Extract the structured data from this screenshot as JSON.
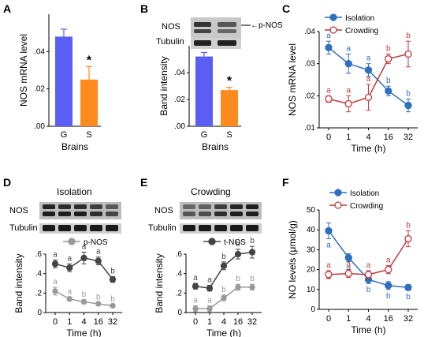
{
  "colors": {
    "blue": "#2f6fbf",
    "red": "#c0393b",
    "bar_blue": "#5b5ef5",
    "bar_orange": "#ff8a1e",
    "dark": "#444444",
    "gray": "#999999"
  },
  "chart_data": [
    {
      "panel": "A",
      "type": "bar",
      "categories": [
        "G",
        "S"
      ],
      "values": [
        0.048,
        0.025
      ],
      "errors": [
        0.004,
        0.007
      ],
      "ylabel": "NOS mRNA level",
      "xlabel": "Brains",
      "ylim": [
        0,
        0.06
      ],
      "yticks": [
        ".00",
        ".02",
        ".04"
      ],
      "annotation": "*"
    },
    {
      "panel": "B",
      "type": "bar",
      "categories": [
        "G",
        "S"
      ],
      "values": [
        0.052,
        0.027
      ],
      "errors": [
        0.003,
        0.002
      ],
      "ylabel": "Band intensity",
      "xlabel": "Brains",
      "ylim": [
        0,
        0.06
      ],
      "yticks": [
        ".00",
        ".02",
        ".04"
      ],
      "annotation": "*",
      "blot_labels": [
        "NOS",
        "Tubulin"
      ],
      "blot_arrow_label": "p-NOS"
    },
    {
      "panel": "C",
      "type": "line",
      "x": [
        "0",
        "1",
        "4",
        "16",
        "32"
      ],
      "ylabel": "NOS mRNA level",
      "xlabel": "Time (h)",
      "ylim": [
        0.01,
        0.04
      ],
      "yticks": [
        ".01",
        ".02",
        ".03",
        ".04"
      ],
      "series": [
        {
          "name": "Isolation",
          "values": [
            0.035,
            0.03,
            0.028,
            0.0215,
            0.017
          ],
          "errors": [
            0.002,
            0.003,
            0.002,
            0.0015,
            0.002
          ],
          "letters": [
            "a",
            "a",
            "a",
            "b",
            "b"
          ]
        },
        {
          "name": "Crowding",
          "values": [
            0.019,
            0.0175,
            0.0195,
            0.0315,
            0.033
          ],
          "errors": [
            0.001,
            0.0025,
            0.004,
            0.0015,
            0.004
          ],
          "letters": [
            "a",
            "a",
            "a",
            "b",
            "b"
          ]
        }
      ],
      "legend": "top-right"
    },
    {
      "panel": "D",
      "type": "line",
      "title": "Isolation",
      "x": [
        "0",
        "1",
        "4",
        "16",
        "32"
      ],
      "ylabel": "Band intensity",
      "xlabel": "Time (h)",
      "ylim": [
        0,
        0.6
      ],
      "yticks": [
        "0",
        ".2",
        ".4",
        ".6"
      ],
      "blot_labels": [
        "NOS",
        "Tubulin"
      ],
      "series": [
        {
          "name": "p-NOS",
          "values": [
            0.22,
            0.14,
            0.11,
            0.09,
            0.07
          ],
          "errors": [
            0.04,
            0.02,
            0.02,
            0.01,
            0.01
          ],
          "letters": [
            "a",
            "a",
            "b",
            "b",
            "b"
          ]
        },
        {
          "name": "t-NOS",
          "values": [
            0.5,
            0.46,
            0.56,
            0.53,
            0.34
          ],
          "errors": [
            0.04,
            0.04,
            0.06,
            0.04,
            0.03
          ],
          "letters": [
            "a",
            "a",
            "a",
            "a",
            "b"
          ]
        }
      ],
      "legend": "top"
    },
    {
      "panel": "E",
      "type": "line",
      "title": "Crowding",
      "x": [
        "0",
        "1",
        "4",
        "16",
        "32"
      ],
      "ylabel": "Band intensity",
      "xlabel": "Time (h)",
      "ylim": [
        0,
        0.6
      ],
      "yticks": [
        "0",
        ".2",
        ".4",
        ".6"
      ],
      "blot_labels": [
        "NOS",
        "Tubulin"
      ],
      "series": [
        {
          "name": "p-NOS",
          "values": [
            0.04,
            0.04,
            0.15,
            0.26,
            0.26
          ],
          "errors": [
            0.03,
            0.03,
            0.03,
            0.03,
            0.03
          ],
          "letters": [
            "a",
            "a",
            "b",
            "b",
            "b"
          ]
        },
        {
          "name": "t-NOS",
          "values": [
            0.27,
            0.25,
            0.48,
            0.6,
            0.62
          ],
          "errors": [
            0.03,
            0.03,
            0.04,
            0.05,
            0.06
          ],
          "letters": [
            "a",
            "a",
            "b",
            "b",
            "b"
          ]
        }
      ],
      "legend": "top"
    },
    {
      "panel": "F",
      "type": "line",
      "x": [
        "0",
        "1",
        "4",
        "16",
        "32"
      ],
      "ylabel": "NO levels (μmol/g)",
      "xlabel": "Time (h)",
      "ylim": [
        0,
        50
      ],
      "yticks": [
        "0",
        "10",
        "20",
        "30",
        "40",
        "50"
      ],
      "series": [
        {
          "name": "Isolation",
          "values": [
            39.5,
            26,
            15,
            12,
            11
          ],
          "errors": [
            4,
            2,
            2,
            2,
            1.5
          ],
          "letters": [
            "a",
            "a",
            "b",
            "b",
            "b"
          ]
        },
        {
          "name": "Crowding",
          "values": [
            17.5,
            18,
            17.5,
            20,
            35.5
          ],
          "errors": [
            2,
            2,
            2,
            2,
            4
          ],
          "letters": [
            "a",
            "a",
            "a",
            "a",
            "b"
          ]
        }
      ],
      "legend": "top-right"
    }
  ]
}
